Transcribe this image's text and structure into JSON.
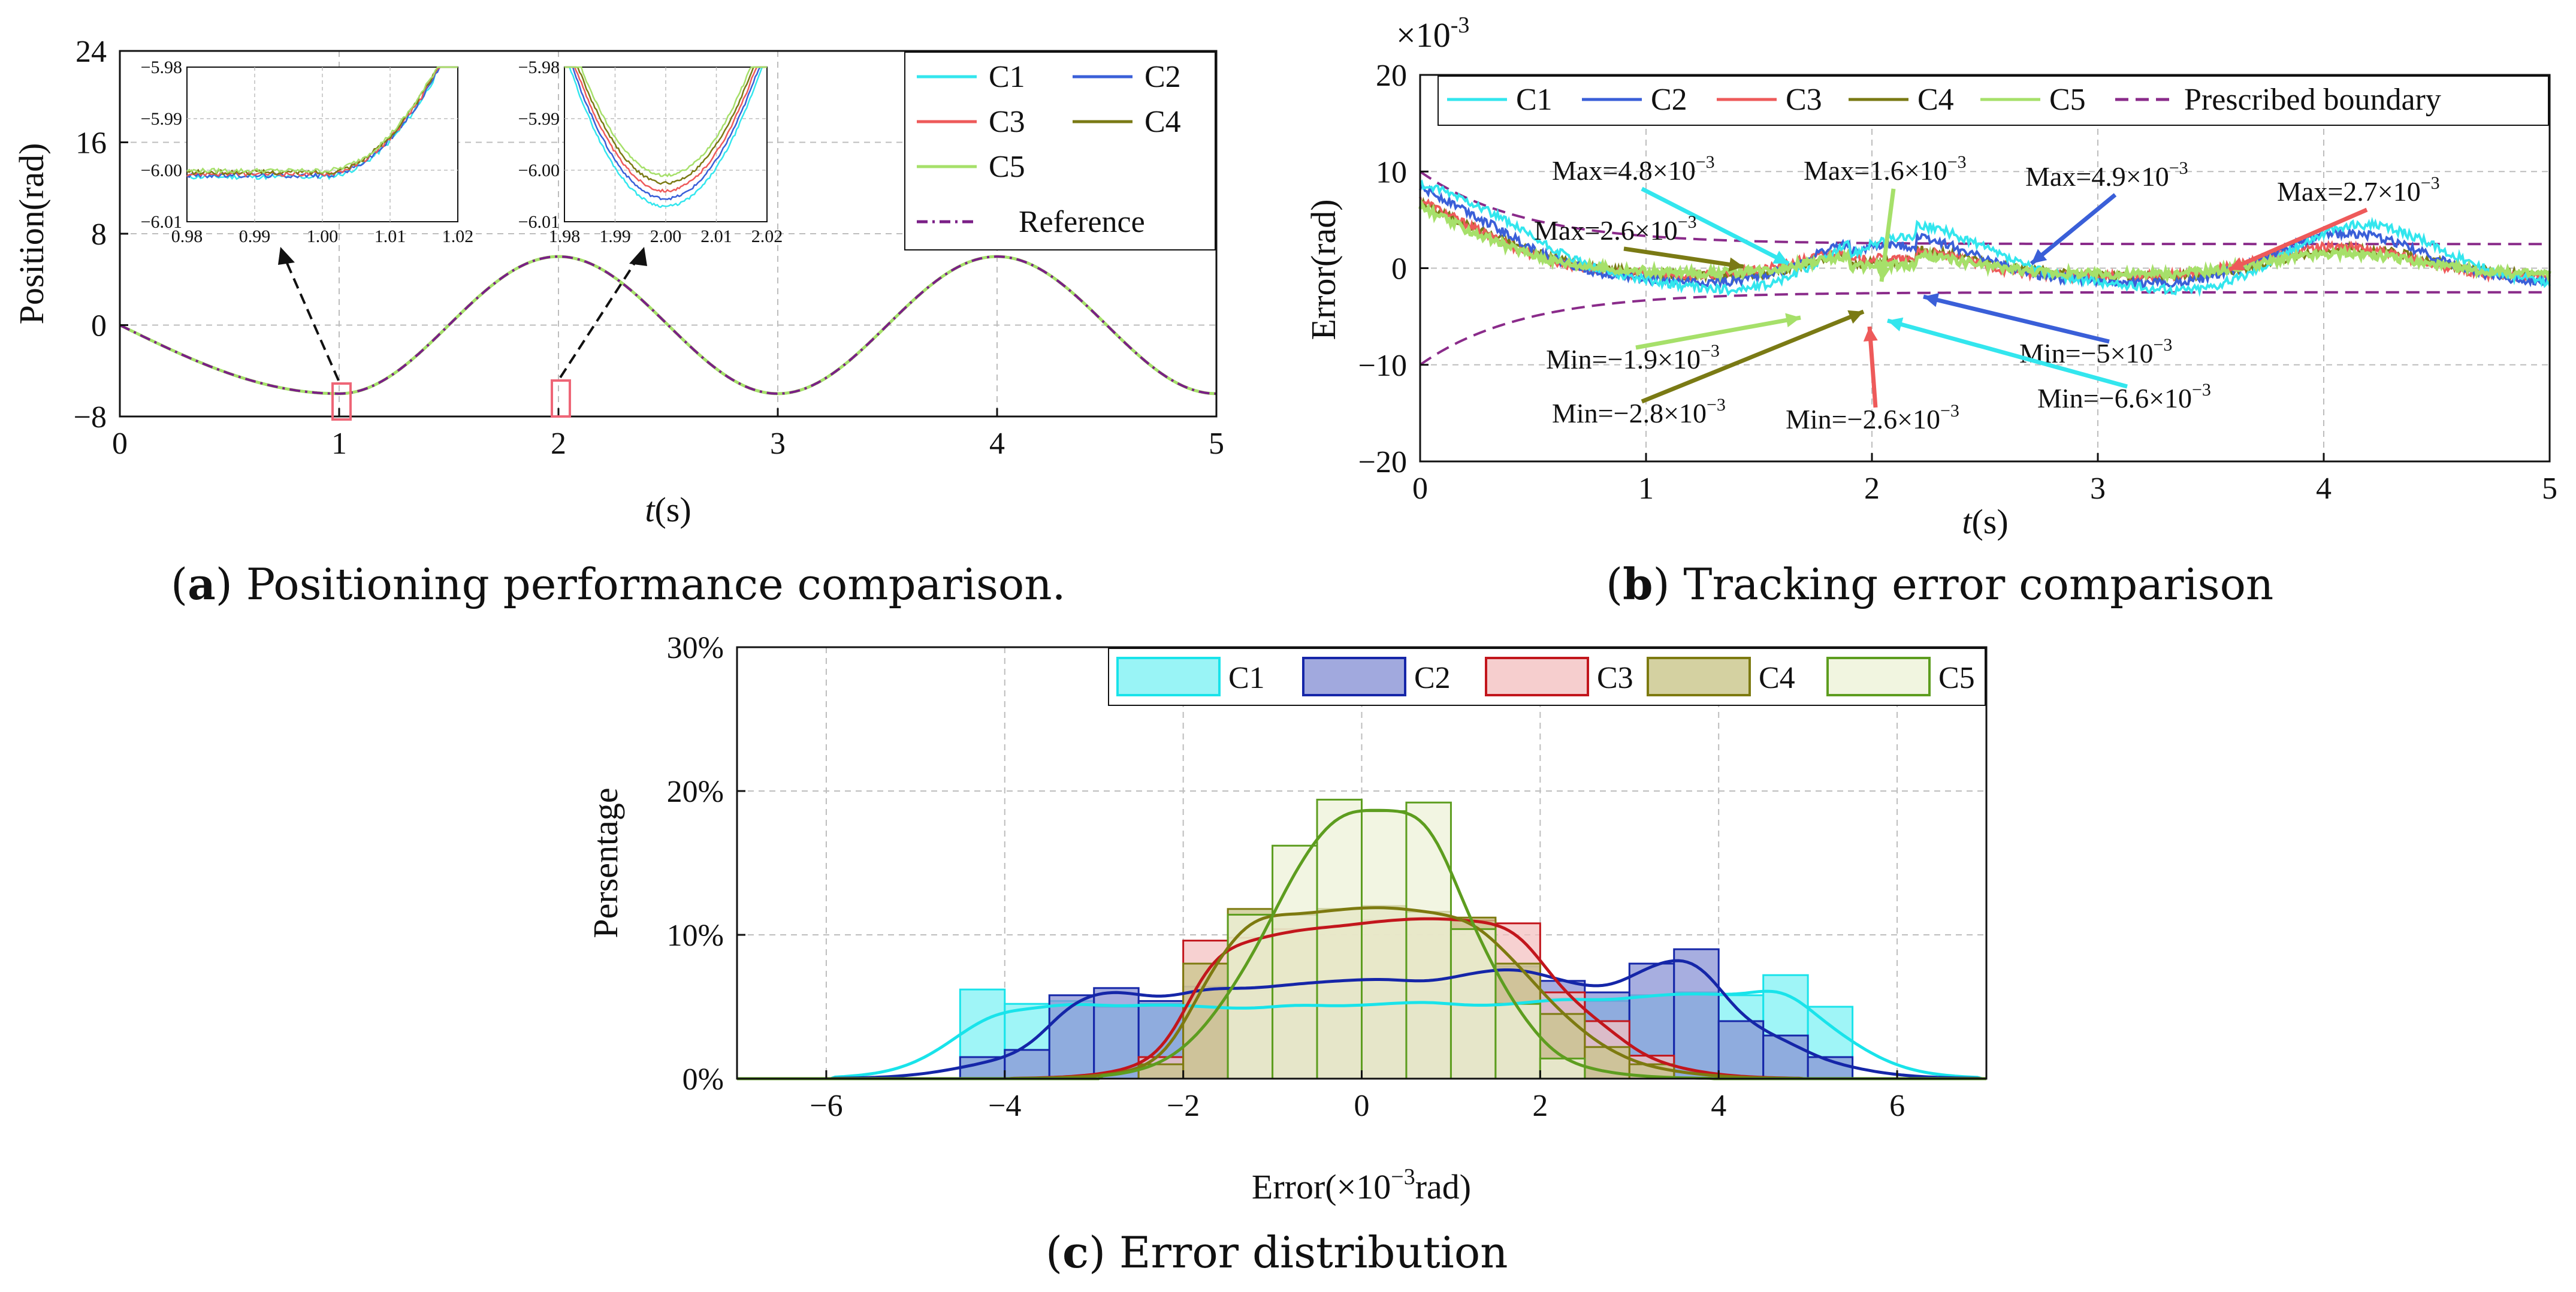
{
  "figure": {
    "captions": [
      {
        "letter": "a",
        "text": " Positioning performance comparison."
      },
      {
        "letter": "b",
        "text": " Tracking error comparison"
      },
      {
        "letter": "c",
        "text": " Error distribution"
      }
    ]
  },
  "colors": {
    "C1": "#33e6ee",
    "C2": "#3a5fd8",
    "C3": "#ee5a5a",
    "C4": "#7a7a14",
    "C5": "#a6e06a",
    "Reference": "#7a1f86",
    "Boundary": "#8a2b8a",
    "hist_C1": "#19e3ea",
    "hist_C2": "#1526a8",
    "hist_C3": "#c2161c",
    "hist_C4": "#7d7a10",
    "hist_C5": "#5d9d1f",
    "grid": "#bdbdbd"
  },
  "chart_data": [
    {
      "id": "a",
      "type": "line",
      "xlabel_italic": "t",
      "xlabel_unit": "(s)",
      "ylabel": "Position(rad)",
      "xlim": [
        0,
        5
      ],
      "ylim": [
        -8,
        24
      ],
      "xticks": [
        "0",
        "1",
        "2",
        "3",
        "4",
        "5"
      ],
      "yticks": [
        "−8",
        "0",
        "8",
        "16",
        "24"
      ],
      "legend": [
        "C1",
        "C2",
        "C3",
        "C4",
        "C5",
        "Reference"
      ],
      "reference_signal": "y(t) = -6 sin(pi t / 2) for t < 1; y(t) = -6 cos(pi (t - 1)) for t >= 1",
      "insets": [
        {
          "xlim": [
            0.98,
            1.02
          ],
          "ylim": [
            -6.01,
            -5.98
          ],
          "xticks": [
            "0.98",
            "0.99",
            "1.00",
            "1.01",
            "1.02"
          ],
          "yticks": [
            "−5.98",
            "−5.99",
            "−6.00",
            "−6.01"
          ],
          "zoom_at": 1
        },
        {
          "xlim": [
            1.98,
            2.02
          ],
          "ylim": [
            -6.01,
            -5.98
          ],
          "xticks": [
            "1.98",
            "1.99",
            "2.00",
            "2.01",
            "2.02"
          ],
          "yticks": [
            "−5.98",
            "−5.99",
            "−6.00",
            "−6.01"
          ],
          "zoom_at": 2
        }
      ]
    },
    {
      "id": "b",
      "type": "line",
      "xlabel_italic": "t",
      "xlabel_unit": "(s)",
      "ylabel": "Error(rad)",
      "scale_label_base": "×10",
      "scale_label_exp": "-3",
      "xlim": [
        0,
        5
      ],
      "ylim": [
        -20,
        20
      ],
      "xticks": [
        "0",
        "1",
        "2",
        "3",
        "4",
        "5"
      ],
      "yticks": [
        "−20",
        "−10",
        "0",
        "10",
        "20"
      ],
      "legend": [
        "C1",
        "C2",
        "C3",
        "C4",
        "C5",
        "Prescribed boundary"
      ],
      "annotations": [
        {
          "text": "Max=4.8×10",
          "exp": "−3",
          "series": "C1",
          "x": 1.6,
          "y": 4.8
        },
        {
          "text": "Max=1.6×10",
          "exp": "−3",
          "series": "C5",
          "x": 2.35,
          "y": 1.6
        },
        {
          "text": "Max=4.9×10",
          "exp": "−3",
          "series": "C2",
          "x": 2.6,
          "y": 4.9
        },
        {
          "text": "Max=2.7×10",
          "exp": "−3",
          "series": "C3",
          "x": 3.6,
          "y": 2.7
        },
        {
          "text": "Max=2.6×10",
          "exp": "−3",
          "series": "C4",
          "x": 1.5,
          "y": 2.6
        },
        {
          "text": "Min=−1.9×10",
          "exp": "−3",
          "series": "C5",
          "x": 2.0,
          "y": -1.9
        },
        {
          "text": "Min=−5×10",
          "exp": "−3",
          "series": "C2",
          "x": 2.2,
          "y": -5.0
        },
        {
          "text": "Min=−6.6×10",
          "exp": "−3",
          "series": "C1",
          "x": 2.1,
          "y": -6.6
        },
        {
          "text": "Min=−2.8×10",
          "exp": "−3",
          "series": "C4",
          "x": 1.95,
          "y": -2.8
        },
        {
          "text": "Min=−2.6×10",
          "exp": "−3",
          "series": "C3",
          "x": 2.05,
          "y": -2.6
        }
      ]
    },
    {
      "id": "c",
      "type": "bar",
      "xlabel": "Error(×10",
      "xlabel_exp": "−3",
      "xlabel_tail": "rad)",
      "ylabel": "Persentage",
      "xlim": [
        -7,
        7
      ],
      "ylim": [
        0,
        30
      ],
      "xticks": [
        "−6",
        "−4",
        "−2",
        "0",
        "2",
        "4",
        "6"
      ],
      "yticks": [
        "0%",
        "10%",
        "20%",
        "30%"
      ],
      "legend": [
        "C1",
        "C2",
        "C3",
        "C4",
        "C5"
      ],
      "bin_width": 0.5,
      "series": [
        {
          "name": "C1",
          "bin_start": -4.5,
          "values": [
            6.2,
            5.2,
            5.4,
            5.0,
            5.2,
            5.0,
            4.8,
            5.2,
            5.0,
            5.2,
            5.4,
            5.0,
            5.2,
            5.6,
            5.4,
            5.8,
            6.0,
            5.8,
            7.2,
            5.0
          ]
        },
        {
          "name": "C2",
          "bin_start": -4.5,
          "values": [
            1.5,
            2.0,
            5.8,
            6.3,
            5.4,
            6.4,
            6.2,
            6.6,
            6.8,
            7.0,
            6.6,
            7.4,
            7.8,
            6.8,
            6.0,
            8.0,
            9.0,
            4.0,
            3.0,
            1.5
          ]
        },
        {
          "name": "C3",
          "bin_start": -2.5,
          "values": [
            1.5,
            9.6,
            9.8,
            10.4,
            10.6,
            11.0,
            11.2,
            11.0,
            10.8,
            6.0,
            4.0,
            1.6
          ]
        },
        {
          "name": "C4",
          "bin_start": -2.5,
          "values": [
            1.0,
            8.0,
            11.8,
            11.4,
            11.8,
            12.0,
            11.6,
            11.2,
            8.0,
            4.5,
            2.2,
            1.0
          ]
        },
        {
          "name": "C5",
          "bin_start": -1.5,
          "values": [
            11.4,
            16.2,
            19.4,
            18.6,
            19.2,
            10.4,
            5.2,
            1.4
          ]
        }
      ]
    }
  ]
}
